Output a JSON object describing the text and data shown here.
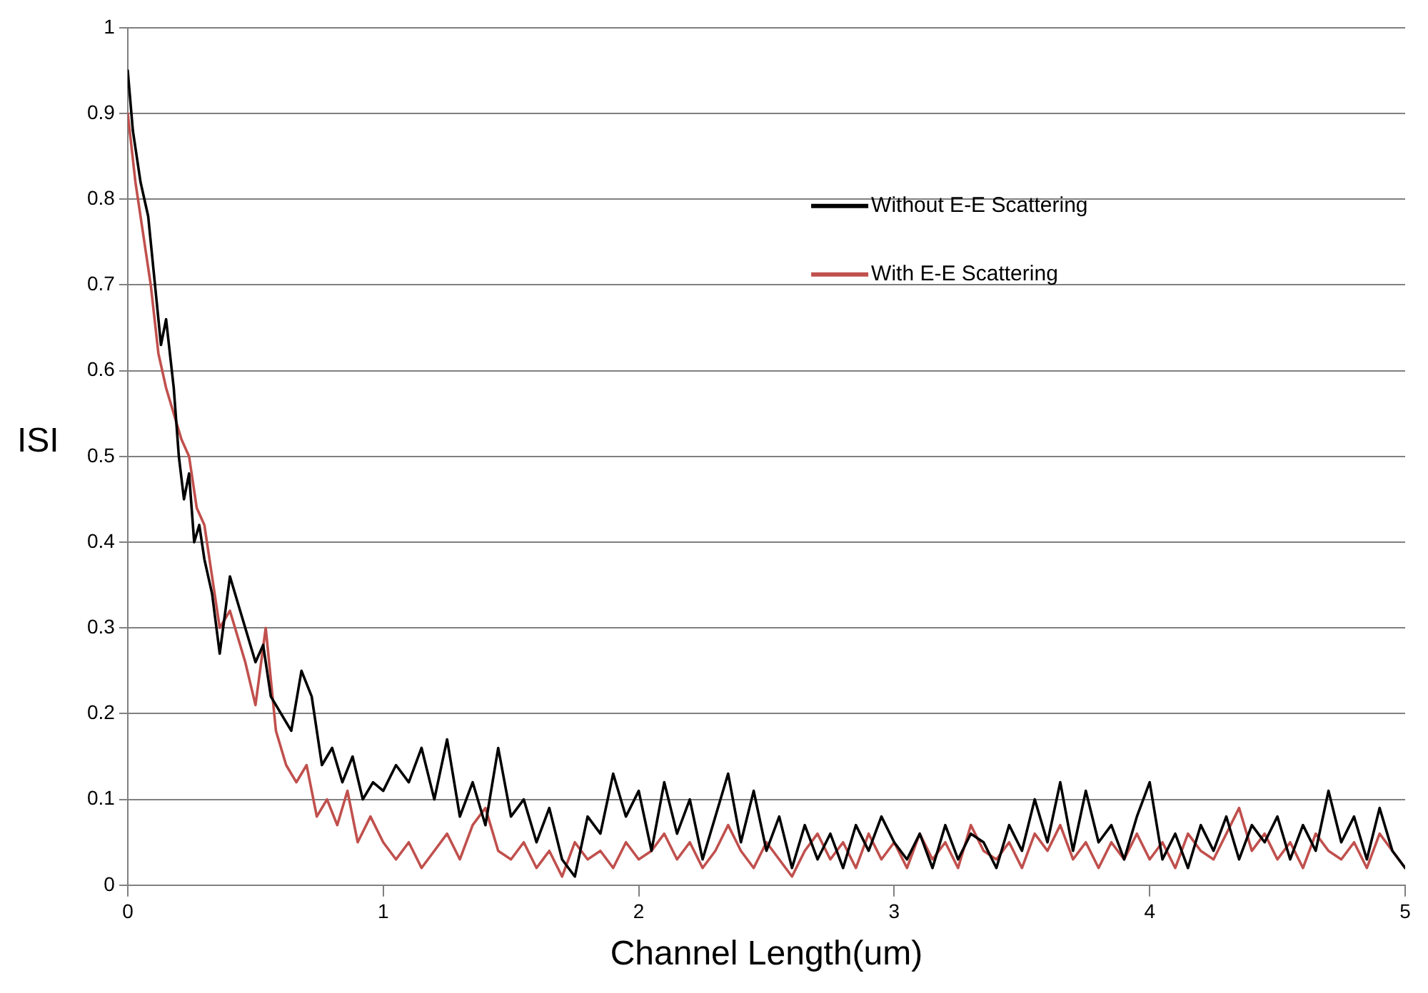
{
  "chart_data": {
    "type": "line",
    "xlabel": "Channel Length(um)",
    "ylabel": "ISI",
    "xlim": [
      0,
      5
    ],
    "ylim": [
      0,
      1
    ],
    "xticks": [
      0,
      1,
      2,
      3,
      4,
      5
    ],
    "yticks": [
      0,
      0.1,
      0.2,
      0.3,
      0.4,
      0.5,
      0.6,
      0.7,
      0.8,
      0.9,
      1
    ],
    "grid": "y",
    "legend": "top right",
    "marker": "none",
    "line_style": "solid",
    "series": [
      {
        "name": "Without E-E Scattering",
        "color": "#000000",
        "x": [
          0,
          0.02,
          0.05,
          0.08,
          0.1,
          0.13,
          0.15,
          0.18,
          0.2,
          0.22,
          0.24,
          0.26,
          0.28,
          0.3,
          0.33,
          0.36,
          0.4,
          0.43,
          0.46,
          0.5,
          0.53,
          0.56,
          0.6,
          0.64,
          0.68,
          0.72,
          0.76,
          0.8,
          0.84,
          0.88,
          0.92,
          0.96,
          1.0,
          1.05,
          1.1,
          1.15,
          1.2,
          1.25,
          1.3,
          1.35,
          1.4,
          1.45,
          1.5,
          1.55,
          1.6,
          1.65,
          1.7,
          1.75,
          1.8,
          1.85,
          1.9,
          1.95,
          2.0,
          2.05,
          2.1,
          2.15,
          2.2,
          2.25,
          2.3,
          2.35,
          2.4,
          2.45,
          2.5,
          2.55,
          2.6,
          2.65,
          2.7,
          2.75,
          2.8,
          2.85,
          2.9,
          2.95,
          3.0,
          3.05,
          3.1,
          3.15,
          3.2,
          3.25,
          3.3,
          3.35,
          3.4,
          3.45,
          3.5,
          3.55,
          3.6,
          3.65,
          3.7,
          3.75,
          3.8,
          3.85,
          3.9,
          3.95,
          4.0,
          4.05,
          4.1,
          4.15,
          4.2,
          4.25,
          4.3,
          4.35,
          4.4,
          4.45,
          4.5,
          4.55,
          4.6,
          4.65,
          4.7,
          4.75,
          4.8,
          4.85,
          4.9,
          4.95,
          5.0
        ],
        "values": [
          0.95,
          0.88,
          0.82,
          0.78,
          0.72,
          0.63,
          0.66,
          0.58,
          0.5,
          0.45,
          0.48,
          0.4,
          0.42,
          0.38,
          0.34,
          0.27,
          0.36,
          0.33,
          0.3,
          0.26,
          0.28,
          0.22,
          0.2,
          0.18,
          0.25,
          0.22,
          0.14,
          0.16,
          0.12,
          0.15,
          0.1,
          0.12,
          0.11,
          0.14,
          0.12,
          0.16,
          0.1,
          0.17,
          0.08,
          0.12,
          0.07,
          0.16,
          0.08,
          0.1,
          0.05,
          0.09,
          0.03,
          0.01,
          0.08,
          0.06,
          0.13,
          0.08,
          0.11,
          0.04,
          0.12,
          0.06,
          0.1,
          0.03,
          0.08,
          0.13,
          0.05,
          0.11,
          0.04,
          0.08,
          0.02,
          0.07,
          0.03,
          0.06,
          0.02,
          0.07,
          0.04,
          0.08,
          0.05,
          0.03,
          0.06,
          0.02,
          0.07,
          0.03,
          0.06,
          0.05,
          0.02,
          0.07,
          0.04,
          0.1,
          0.05,
          0.12,
          0.04,
          0.11,
          0.05,
          0.07,
          0.03,
          0.08,
          0.12,
          0.03,
          0.06,
          0.02,
          0.07,
          0.04,
          0.08,
          0.03,
          0.07,
          0.05,
          0.08,
          0.03,
          0.07,
          0.04,
          0.11,
          0.05,
          0.08,
          0.03,
          0.09,
          0.04,
          0.02
        ]
      },
      {
        "name": "With E-E Scattering",
        "color": "#c0504d",
        "x": [
          0,
          0.03,
          0.06,
          0.09,
          0.12,
          0.15,
          0.18,
          0.21,
          0.24,
          0.27,
          0.3,
          0.33,
          0.36,
          0.4,
          0.43,
          0.46,
          0.5,
          0.54,
          0.58,
          0.62,
          0.66,
          0.7,
          0.74,
          0.78,
          0.82,
          0.86,
          0.9,
          0.95,
          1.0,
          1.05,
          1.1,
          1.15,
          1.2,
          1.25,
          1.3,
          1.35,
          1.4,
          1.45,
          1.5,
          1.55,
          1.6,
          1.65,
          1.7,
          1.75,
          1.8,
          1.85,
          1.9,
          1.95,
          2.0,
          2.05,
          2.1,
          2.15,
          2.2,
          2.25,
          2.3,
          2.35,
          2.4,
          2.45,
          2.5,
          2.55,
          2.6,
          2.65,
          2.7,
          2.75,
          2.8,
          2.85,
          2.9,
          2.95,
          3.0,
          3.05,
          3.1,
          3.15,
          3.2,
          3.25,
          3.3,
          3.35,
          3.4,
          3.45,
          3.5,
          3.55,
          3.6,
          3.65,
          3.7,
          3.75,
          3.8,
          3.85,
          3.9,
          3.95,
          4.0,
          4.05,
          4.1,
          4.15,
          4.2,
          4.25,
          4.3,
          4.35,
          4.4,
          4.45,
          4.5,
          4.55,
          4.6,
          4.65,
          4.7,
          4.75,
          4.8,
          4.85,
          4.9,
          4.95,
          5.0
        ],
        "values": [
          0.9,
          0.82,
          0.76,
          0.7,
          0.62,
          0.58,
          0.55,
          0.52,
          0.5,
          0.44,
          0.42,
          0.36,
          0.3,
          0.32,
          0.29,
          0.26,
          0.21,
          0.3,
          0.18,
          0.14,
          0.12,
          0.14,
          0.08,
          0.1,
          0.07,
          0.11,
          0.05,
          0.08,
          0.05,
          0.03,
          0.05,
          0.02,
          0.04,
          0.06,
          0.03,
          0.07,
          0.09,
          0.04,
          0.03,
          0.05,
          0.02,
          0.04,
          0.01,
          0.05,
          0.03,
          0.04,
          0.02,
          0.05,
          0.03,
          0.04,
          0.06,
          0.03,
          0.05,
          0.02,
          0.04,
          0.07,
          0.04,
          0.02,
          0.05,
          0.03,
          0.01,
          0.04,
          0.06,
          0.03,
          0.05,
          0.02,
          0.06,
          0.03,
          0.05,
          0.02,
          0.06,
          0.03,
          0.05,
          0.02,
          0.07,
          0.04,
          0.03,
          0.05,
          0.02,
          0.06,
          0.04,
          0.07,
          0.03,
          0.05,
          0.02,
          0.05,
          0.03,
          0.06,
          0.03,
          0.05,
          0.02,
          0.06,
          0.04,
          0.03,
          0.06,
          0.09,
          0.04,
          0.06,
          0.03,
          0.05,
          0.02,
          0.06,
          0.04,
          0.03,
          0.05,
          0.02,
          0.06,
          0.04,
          0.02
        ]
      }
    ]
  }
}
